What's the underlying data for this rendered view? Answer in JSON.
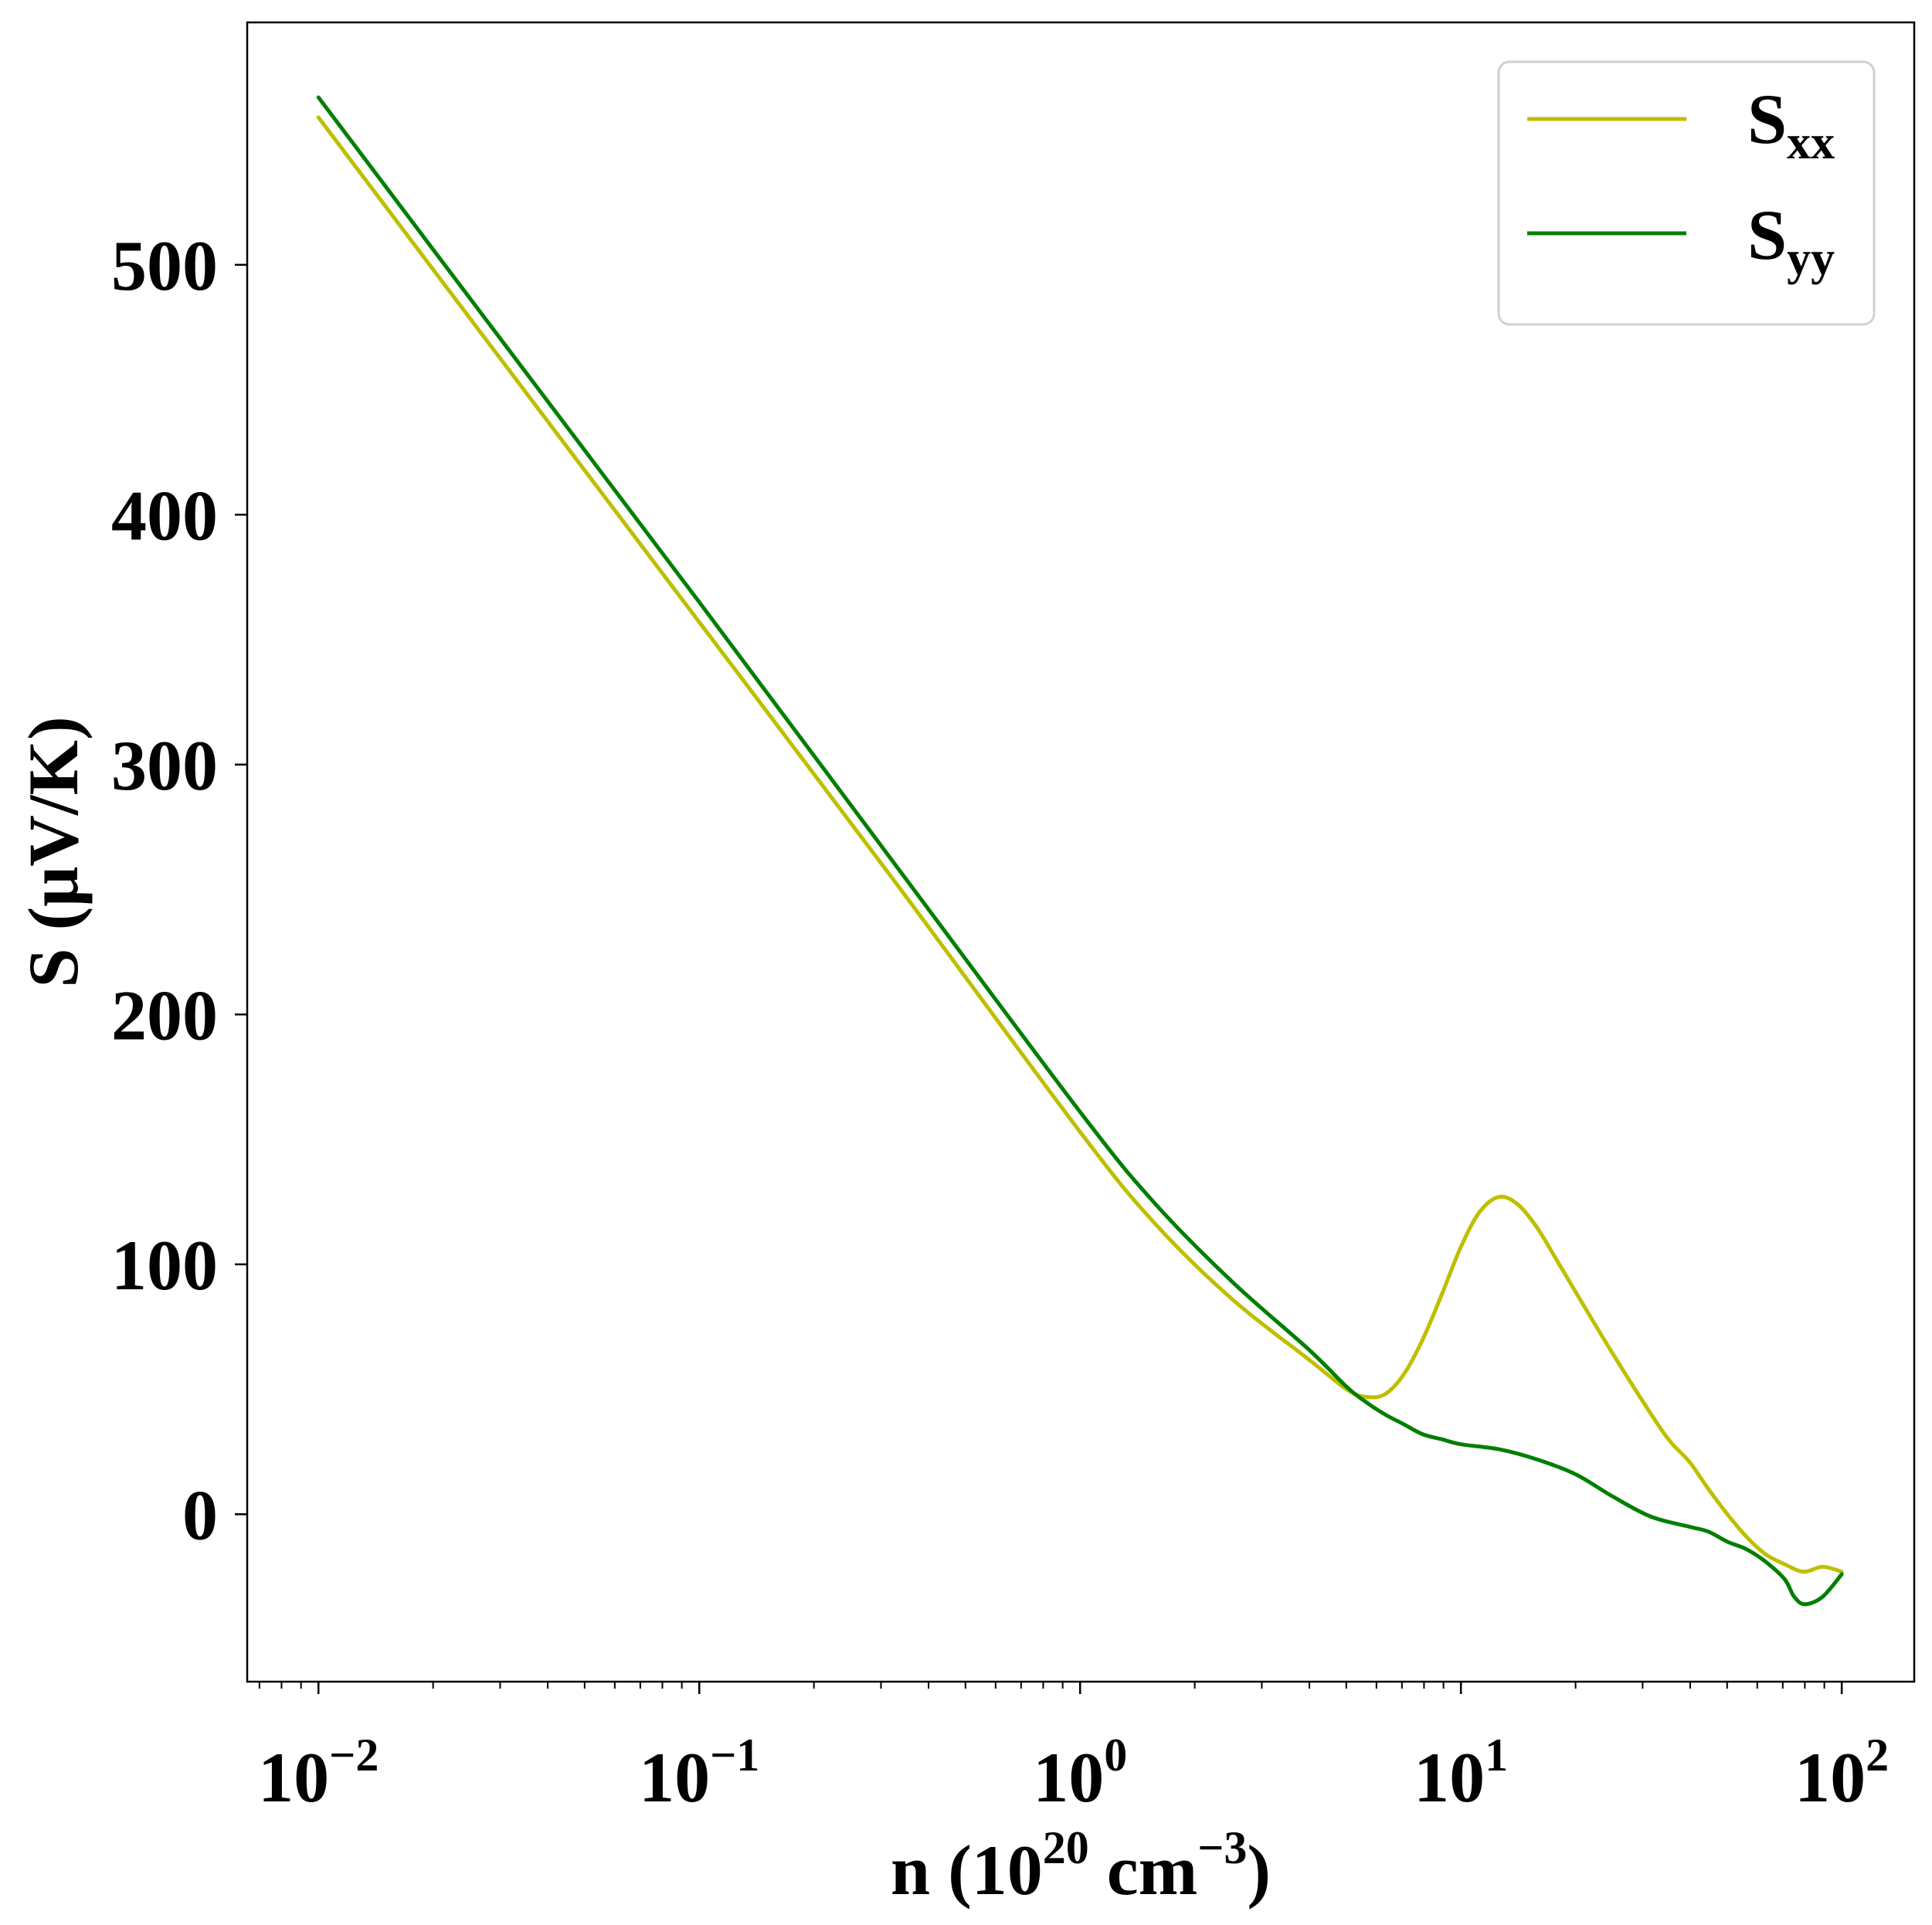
{
  "chart_data": {
    "type": "line",
    "xscale": "log",
    "xlabel": {
      "base": "n (10",
      "exp": "20",
      "mid": " cm",
      "exp2": "−3",
      "tail": ")"
    },
    "ylabel": "S (μV/K)",
    "xlim": [
      0.0065,
      155
    ],
    "ylim": [
      -67,
      597
    ],
    "x_ticks": [
      {
        "value": 0.01,
        "base": "10",
        "exp": "−2"
      },
      {
        "value": 0.1,
        "base": "10",
        "exp": "−1"
      },
      {
        "value": 1,
        "base": "10",
        "exp": "0"
      },
      {
        "value": 10,
        "base": "10",
        "exp": "1"
      },
      {
        "value": 100,
        "base": "10",
        "exp": "2"
      }
    ],
    "y_ticks": [
      {
        "value": 0,
        "label": "0"
      },
      {
        "value": 100,
        "label": "100"
      },
      {
        "value": 200,
        "label": "200"
      },
      {
        "value": 300,
        "label": "300"
      },
      {
        "value": 400,
        "label": "400"
      },
      {
        "value": 500,
        "label": "500"
      }
    ],
    "legend": {
      "position": "top-right"
    },
    "series": [
      {
        "name": "Sxx",
        "label_main": "S",
        "label_sub": "xx",
        "color": "#bfbf00",
        "points": [
          [
            0.01,
            559
          ],
          [
            0.0316,
            458
          ],
          [
            0.1,
            357
          ],
          [
            0.316,
            256
          ],
          [
            1,
            153
          ],
          [
            1.58,
            116
          ],
          [
            2.51,
            86
          ],
          [
            3.98,
            62
          ],
          [
            5.01,
            50
          ],
          [
            5.62,
            47
          ],
          [
            6.31,
            48
          ],
          [
            7.08,
            56
          ],
          [
            7.94,
            70
          ],
          [
            8.91,
            88
          ],
          [
            10.0,
            107
          ],
          [
            11.2,
            121
          ],
          [
            12.6,
            127
          ],
          [
            14.1,
            124
          ],
          [
            15.8,
            115
          ],
          [
            17.8,
            102
          ],
          [
            20.0,
            89
          ],
          [
            25.1,
            64
          ],
          [
            31.6,
            40
          ],
          [
            35.5,
            29
          ],
          [
            39.8,
            21
          ],
          [
            44.7,
            10
          ],
          [
            50.1,
            0
          ],
          [
            56.2,
            -9
          ],
          [
            63.1,
            -16
          ],
          [
            70.8,
            -20
          ],
          [
            79.4,
            -23
          ],
          [
            89.1,
            -21
          ],
          [
            100,
            -23
          ]
        ]
      },
      {
        "name": "Syy",
        "label_main": "S",
        "label_sub": "yy",
        "color": "#007f00",
        "points": [
          [
            0.01,
            567
          ],
          [
            0.0316,
            466
          ],
          [
            0.1,
            365
          ],
          [
            0.316,
            263
          ],
          [
            1,
            161
          ],
          [
            1.58,
            124
          ],
          [
            2.51,
            93
          ],
          [
            3.98,
            66
          ],
          [
            5.01,
            51
          ],
          [
            5.62,
            45
          ],
          [
            6.31,
            40
          ],
          [
            7.08,
            36
          ],
          [
            7.94,
            32
          ],
          [
            8.91,
            30
          ],
          [
            10.0,
            28
          ],
          [
            12.6,
            26
          ],
          [
            15.8,
            22
          ],
          [
            20.0,
            16
          ],
          [
            25.1,
            7
          ],
          [
            31.6,
            -1
          ],
          [
            39.8,
            -5
          ],
          [
            44.7,
            -7
          ],
          [
            50.1,
            -11
          ],
          [
            56.2,
            -14
          ],
          [
            63.1,
            -19
          ],
          [
            70.8,
            -26
          ],
          [
            75.0,
            -33
          ],
          [
            80.0,
            -36
          ],
          [
            89.1,
            -33
          ],
          [
            100,
            -24
          ]
        ]
      }
    ]
  }
}
